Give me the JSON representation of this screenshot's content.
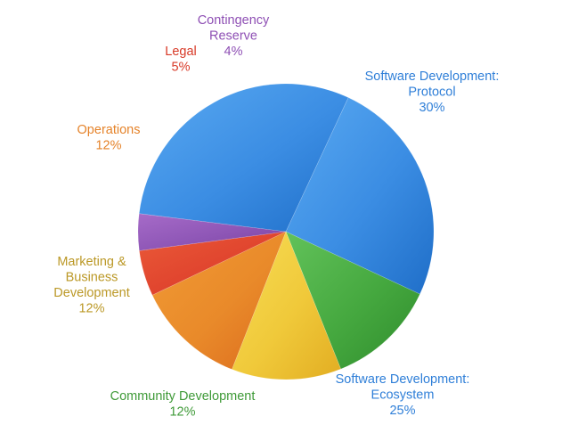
{
  "chart_data": {
    "type": "pie",
    "slices": [
      {
        "label_lines": [
          "Software Development:",
          "Protocol"
        ],
        "percent_label": "30%",
        "value": 30,
        "color": "#3b8de3",
        "light": "#5aaaf2",
        "dark": "#1f6ec8",
        "text_color": "#2f7fd8"
      },
      {
        "label_lines": [
          "Software Development:",
          "Ecosystem"
        ],
        "percent_label": "25%",
        "value": 25,
        "color": "#3b8de3",
        "light": "#5aaaf2",
        "dark": "#1f6ec8",
        "text_color": "#2f7fd8"
      },
      {
        "label_lines": [
          "Community Development"
        ],
        "percent_label": "12%",
        "value": 12,
        "color": "#45a83f",
        "light": "#62c25a",
        "dark": "#2f8c2c",
        "text_color": "#3f9a38"
      },
      {
        "label_lines": [
          "Marketing &",
          "Business",
          "Development"
        ],
        "percent_label": "12%",
        "value": 12,
        "color": "#f0c93a",
        "light": "#f7dd55",
        "dark": "#e2ad22",
        "text_color": "#bb9826"
      },
      {
        "label_lines": [
          "Operations"
        ],
        "percent_label": "12%",
        "value": 12,
        "color": "#e98a2a",
        "light": "#f19b35",
        "dark": "#db6a1d",
        "text_color": "#e5832a"
      },
      {
        "label_lines": [
          "Legal"
        ],
        "percent_label": "5%",
        "value": 5,
        "color": "#e0442e",
        "light": "#ea5a38",
        "dark": "#c92f22",
        "text_color": "#d83a28"
      },
      {
        "label_lines": [
          "Contingency",
          "Reserve"
        ],
        "percent_label": "4%",
        "value": 4,
        "color": "#8e56b6",
        "light": "#a66bc8",
        "dark": "#7a419e",
        "text_color": "#8e4fb4"
      }
    ]
  }
}
